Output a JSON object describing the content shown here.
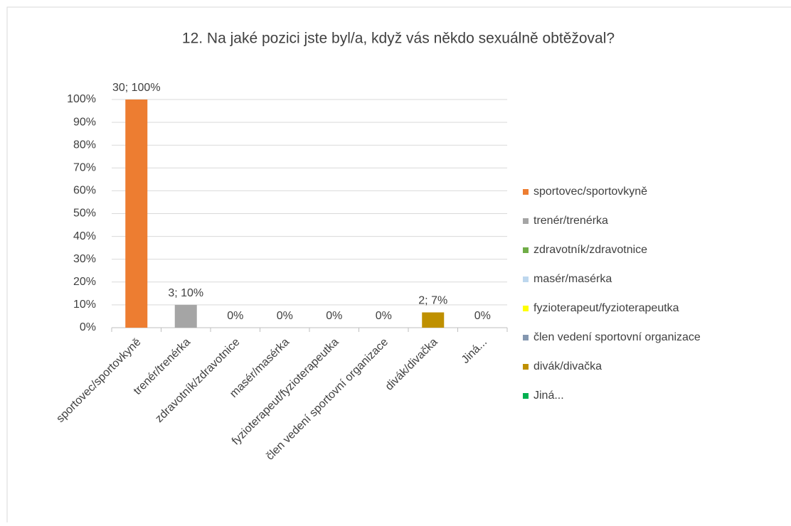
{
  "chart_data": {
    "type": "bar",
    "title": "12. Na jaké pozici jste byl/a, když vás někdo sexuálně obtěžoval?",
    "categories": [
      "sportovec/sportovkyně",
      "trenér/trenérka",
      "zdravotník/zdravotnice",
      "masér/masérka",
      "fyzioterapeut/fyzioterapeutka",
      "člen vedení sportovní organizace",
      "divák/divačka",
      "Jiná..."
    ],
    "values": [
      100,
      10,
      0,
      0,
      0,
      0,
      6.7,
      0
    ],
    "value_labels": [
      "30; 100%",
      "3; 10%",
      "0%",
      "0%",
      "0%",
      "0%",
      "2; 7%",
      "0%"
    ],
    "colors": [
      "#ed7d31",
      "#a5a5a5",
      "#70ad47",
      "#bdd7ee",
      "#ffff00",
      "#8497b0",
      "#bf9000",
      "#00b050"
    ],
    "ylim": [
      0,
      100
    ],
    "yticks": [
      {
        "value": 0,
        "label": "0%"
      },
      {
        "value": 10,
        "label": "10%"
      },
      {
        "value": 20,
        "label": "20%"
      },
      {
        "value": 30,
        "label": "30%"
      },
      {
        "value": 40,
        "label": "40%"
      },
      {
        "value": 50,
        "label": "50%"
      },
      {
        "value": 60,
        "label": "60%"
      },
      {
        "value": 70,
        "label": "70%"
      },
      {
        "value": 80,
        "label": "80%"
      },
      {
        "value": 90,
        "label": "90%"
      },
      {
        "value": 100,
        "label": "100%"
      }
    ],
    "grid": true,
    "legend": "right"
  }
}
